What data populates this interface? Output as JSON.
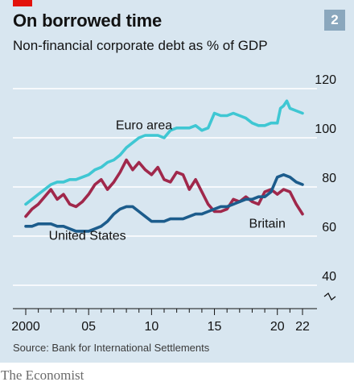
{
  "header": {
    "title": "On borrowed time",
    "subtitle": "Non-financial corporate debt as % of GDP",
    "chart_number": "2"
  },
  "footer": {
    "source": "Source: Bank for International Settlements",
    "logo_text": "The Economist"
  },
  "colors": {
    "euro_area": "#3fc7d3",
    "britain": "#a0284b",
    "united_states": "#1c5c8c",
    "background": "#d8e6f0",
    "brand_red": "#e3120b"
  },
  "chart_data": {
    "type": "line",
    "title": "On borrowed time",
    "subtitle": "Non-financial corporate debt as % of GDP",
    "ylim": [
      40,
      120
    ],
    "y_ticks": [
      40,
      60,
      80,
      100,
      120
    ],
    "y_tick_labels": [
      "40",
      "60",
      "80",
      "100",
      "120"
    ],
    "y_axis_break": true,
    "xlim": [
      1999.5,
      2022.5
    ],
    "x_ticks": [
      2000,
      2005,
      2010,
      2015,
      2020,
      2022
    ],
    "x_tick_labels": [
      "2000",
      "05",
      "10",
      "15",
      "20",
      "22"
    ],
    "grid": "horizontal",
    "series": [
      {
        "name": "Euro area",
        "x": [
          2000,
          2000.5,
          2001,
          2001.5,
          2002,
          2002.5,
          2003,
          2003.5,
          2004,
          2004.5,
          2005,
          2005.5,
          2006,
          2006.5,
          2007,
          2007.5,
          2008,
          2008.5,
          2009,
          2009.5,
          2010,
          2010.5,
          2011,
          2011.5,
          2012,
          2012.5,
          2013,
          2013.5,
          2014,
          2014.5,
          2015,
          2015.5,
          2016,
          2016.5,
          2017,
          2017.5,
          2018,
          2018.5,
          2019,
          2019.5,
          2020,
          2020.25,
          2020.5,
          2020.75,
          2021,
          2021.5,
          2022
        ],
        "values": [
          73,
          75,
          77,
          79,
          81,
          82,
          82,
          83,
          83,
          84,
          85,
          87,
          88,
          90,
          91,
          93,
          96,
          98,
          100,
          101,
          101,
          101,
          100,
          103,
          104,
          104,
          104,
          105,
          103,
          104,
          110,
          109,
          109,
          110,
          109,
          108,
          106,
          105,
          105,
          106,
          106,
          112,
          113,
          115,
          112,
          111,
          110
        ]
      },
      {
        "name": "Britain",
        "x": [
          2000,
          2000.5,
          2001,
          2001.5,
          2002,
          2002.5,
          2003,
          2003.5,
          2004,
          2004.5,
          2005,
          2005.5,
          2006,
          2006.5,
          2007,
          2007.5,
          2008,
          2008.5,
          2009,
          2009.5,
          2010,
          2010.5,
          2011,
          2011.5,
          2012,
          2012.5,
          2013,
          2013.5,
          2014,
          2014.5,
          2015,
          2015.5,
          2016,
          2016.5,
          2017,
          2017.5,
          2018,
          2018.5,
          2019,
          2019.5,
          2020,
          2020.5,
          2021,
          2021.5,
          2022
        ],
        "values": [
          68,
          71,
          73,
          76,
          79,
          75,
          77,
          73,
          72,
          74,
          77,
          81,
          83,
          79,
          82,
          86,
          91,
          87,
          90,
          87,
          85,
          88,
          83,
          82,
          86,
          85,
          79,
          83,
          78,
          73,
          70,
          70,
          71,
          75,
          74,
          76,
          74,
          73,
          78,
          79,
          77,
          79,
          78,
          73,
          69
        ]
      },
      {
        "name": "United States",
        "x": [
          2000,
          2000.5,
          2001,
          2001.5,
          2002,
          2002.5,
          2003,
          2003.5,
          2004,
          2004.5,
          2005,
          2005.5,
          2006,
          2006.5,
          2007,
          2007.5,
          2008,
          2008.5,
          2009,
          2009.5,
          2010,
          2010.5,
          2011,
          2011.5,
          2012,
          2012.5,
          2013,
          2013.5,
          2014,
          2014.5,
          2015,
          2015.5,
          2016,
          2016.5,
          2017,
          2017.5,
          2018,
          2018.5,
          2019,
          2019.5,
          2020,
          2020.5,
          2021,
          2021.5,
          2022
        ],
        "values": [
          64,
          64,
          65,
          65,
          65,
          64,
          64,
          63,
          62,
          62,
          62,
          63,
          64,
          66,
          69,
          71,
          72,
          72,
          70,
          68,
          66,
          66,
          66,
          67,
          67,
          67,
          68,
          69,
          69,
          70,
          71,
          72,
          72,
          73,
          74,
          75,
          75,
          76,
          76,
          78,
          84,
          85,
          84,
          82,
          81
        ]
      }
    ],
    "labels": [
      {
        "text": "Euro area",
        "series": "Euro area",
        "x": 2009.4,
        "y": 103.5
      },
      {
        "text": "Britain",
        "series": "Britain",
        "x": 2019.2,
        "y": 63.5
      },
      {
        "text": "United States",
        "series": "United States",
        "x": 2004.9,
        "y": 58.5
      }
    ]
  }
}
